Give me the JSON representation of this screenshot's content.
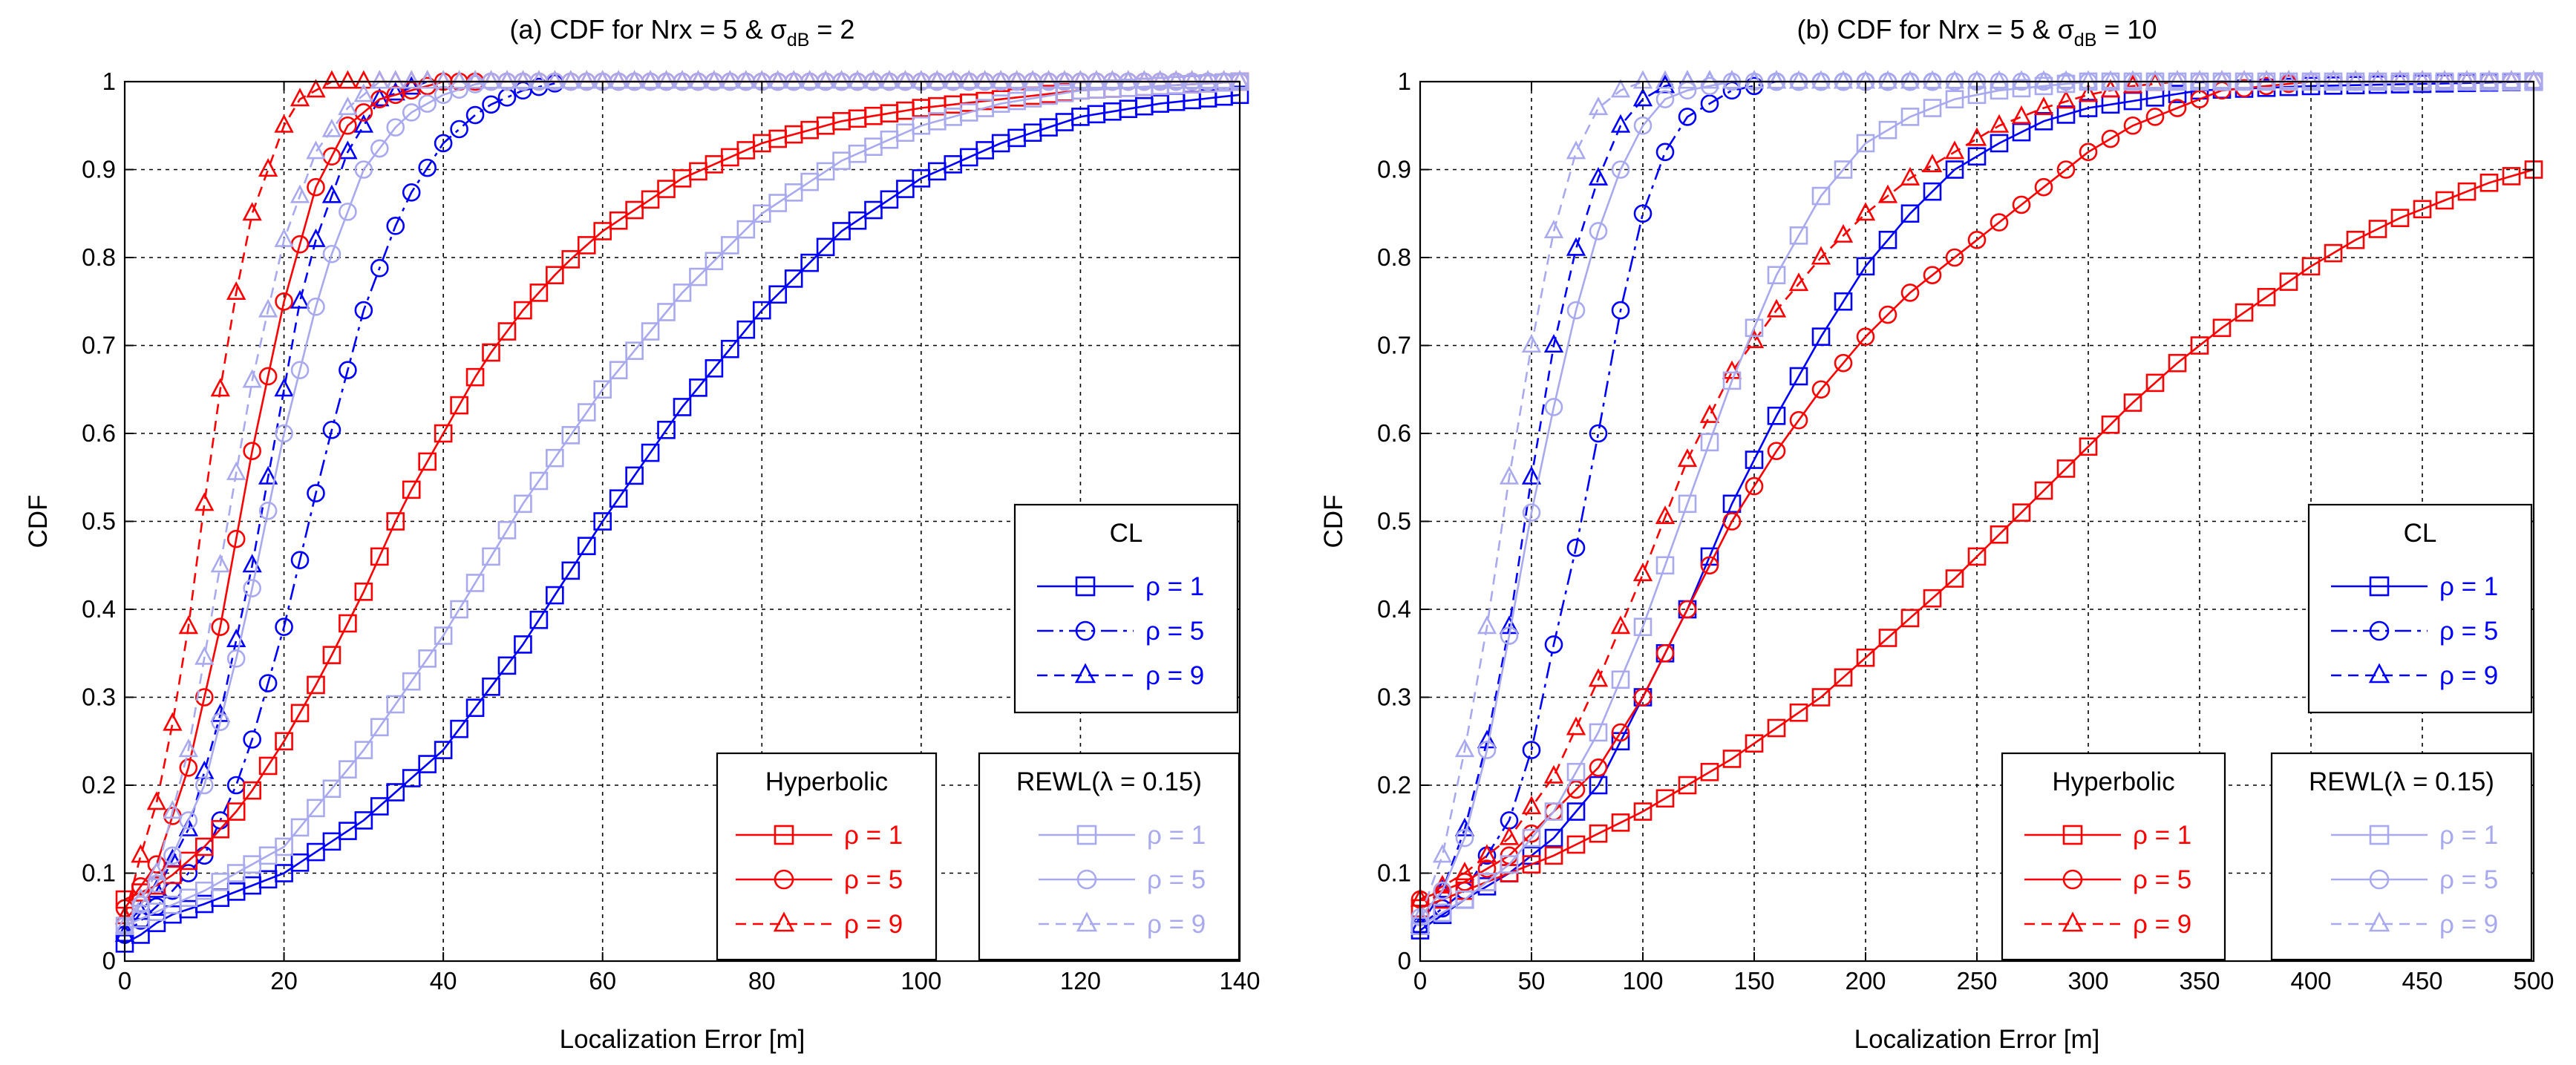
{
  "colors": {
    "cl": "#0000ff",
    "hyp": "#ff0000",
    "rewl": "#a9a9ee",
    "grid": "#000000"
  },
  "chart_data": [
    {
      "type": "line",
      "title_main": "(a) CDF for Nrx = 5 & σ",
      "title_sub": "dB",
      "title_tail": " = 2",
      "xlabel": "Localization Error [m]",
      "ylabel": "CDF",
      "xlim": [
        0,
        140
      ],
      "ylim": [
        0,
        1
      ],
      "xticks": [
        0,
        20,
        40,
        60,
        80,
        100,
        120,
        140
      ],
      "yticks": [
        0,
        0.1,
        0.2,
        0.3,
        0.4,
        0.5,
        0.6,
        0.7,
        0.8,
        0.9,
        1
      ],
      "grid": true,
      "legends": [
        {
          "title": "CL",
          "entries": [
            "CL ρ=1",
            "CL ρ=5",
            "CL ρ=9"
          ],
          "labels": [
            "ρ = 1",
            "ρ = 5",
            "ρ = 9"
          ]
        },
        {
          "title": "Hyperbolic",
          "entries": [
            "Hyperbolic ρ=1",
            "Hyperbolic ρ=5",
            "Hyperbolic ρ=9"
          ],
          "labels": [
            "ρ = 1",
            "ρ = 5",
            "ρ = 9"
          ]
        },
        {
          "title": "REWL(λ = 0.15)",
          "entries": [
            "REWL ρ=1",
            "REWL ρ=5",
            "REWL ρ=9"
          ],
          "labels": [
            "ρ = 1",
            "ρ = 5",
            "ρ = 9"
          ]
        }
      ],
      "series": [
        {
          "name": "CL ρ=1",
          "color": "cl",
          "marker": "square",
          "dash": "solid",
          "x0": 0,
          "step": 2,
          "count": 71,
          "x": [
            0,
            2,
            5,
            10,
            20,
            30,
            40,
            50,
            60,
            70,
            80,
            90,
            100,
            110,
            120,
            130,
            140
          ],
          "y": [
            0.02,
            0.03,
            0.05,
            0.065,
            0.1,
            0.16,
            0.24,
            0.36,
            0.5,
            0.63,
            0.74,
            0.83,
            0.89,
            0.93,
            0.96,
            0.975,
            0.985
          ]
        },
        {
          "name": "CL ρ=5",
          "color": "cl",
          "marker": "circle",
          "dash": "dashdot",
          "x0": 0,
          "step": 2,
          "count": 28,
          "x": [
            0,
            5,
            10,
            15,
            20,
            25,
            30,
            35,
            40,
            45,
            50,
            55
          ],
          "y": [
            0.03,
            0.07,
            0.12,
            0.22,
            0.38,
            0.57,
            0.74,
            0.86,
            0.93,
            0.97,
            0.99,
            1
          ]
        },
        {
          "name": "CL ρ=9",
          "color": "cl",
          "marker": "triangle",
          "dash": "dashed",
          "x0": 0,
          "step": 2,
          "count": 20,
          "x": [
            0,
            4,
            8,
            12,
            16,
            18,
            20,
            22,
            24,
            28,
            32,
            38
          ],
          "y": [
            0.03,
            0.08,
            0.15,
            0.28,
            0.45,
            0.55,
            0.65,
            0.75,
            0.82,
            0.92,
            0.98,
            1
          ]
        },
        {
          "name": "Hyperbolic ρ=1",
          "color": "hyp",
          "marker": "square",
          "dash": "solid",
          "x0": 0,
          "step": 2,
          "count": 71,
          "x": [
            0,
            5,
            10,
            15,
            20,
            25,
            30,
            35,
            40,
            45,
            50,
            55,
            60,
            70,
            80,
            90,
            100,
            110,
            120,
            130,
            140
          ],
          "y": [
            0.07,
            0.09,
            0.13,
            0.18,
            0.25,
            0.33,
            0.42,
            0.52,
            0.6,
            0.68,
            0.74,
            0.79,
            0.83,
            0.89,
            0.93,
            0.955,
            0.97,
            0.98,
            0.99,
            0.995,
            1
          ]
        },
        {
          "name": "Hyperbolic ρ=5",
          "color": "hyp",
          "marker": "circle",
          "dash": "solid",
          "x0": 0,
          "step": 2,
          "count": 71,
          "x": [
            0,
            4,
            8,
            12,
            16,
            20,
            24,
            28,
            32,
            40,
            50,
            60,
            140
          ],
          "y": [
            0.06,
            0.11,
            0.22,
            0.38,
            0.58,
            0.75,
            0.88,
            0.95,
            0.98,
            1,
            1,
            1,
            1
          ]
        },
        {
          "name": "Hyperbolic ρ=9",
          "color": "hyp",
          "marker": "triangle",
          "dash": "dashed",
          "x0": 0,
          "step": 2,
          "count": 71,
          "x": [
            0,
            2,
            4,
            6,
            8,
            10,
            12,
            14,
            16,
            18,
            20,
            22,
            26,
            140
          ],
          "y": [
            0.05,
            0.12,
            0.18,
            0.27,
            0.38,
            0.52,
            0.65,
            0.76,
            0.85,
            0.9,
            0.95,
            0.98,
            1,
            1
          ]
        },
        {
          "name": "REWL ρ=1",
          "color": "rewl",
          "marker": "square",
          "dash": "solid",
          "x0": 0,
          "step": 2,
          "count": 71,
          "x": [
            0,
            5,
            10,
            20,
            30,
            40,
            50,
            60,
            70,
            80,
            90,
            100,
            110,
            120,
            130,
            140
          ],
          "y": [
            0.04,
            0.06,
            0.08,
            0.13,
            0.24,
            0.37,
            0.52,
            0.65,
            0.76,
            0.85,
            0.91,
            0.95,
            0.975,
            0.99,
            0.995,
            1
          ]
        },
        {
          "name": "REWL ρ=5",
          "color": "rewl",
          "marker": "circle",
          "dash": "solid",
          "x0": 0,
          "step": 2,
          "count": 71,
          "x": [
            0,
            5,
            10,
            15,
            20,
            25,
            30,
            35,
            40,
            45,
            140
          ],
          "y": [
            0.04,
            0.1,
            0.2,
            0.38,
            0.6,
            0.78,
            0.9,
            0.96,
            0.985,
            1,
            1
          ]
        },
        {
          "name": "REWL ρ=9",
          "color": "rewl",
          "marker": "triangle",
          "dash": "dashed",
          "x0": 0,
          "step": 2,
          "count": 71,
          "x": [
            0,
            4,
            8,
            12,
            16,
            20,
            24,
            28,
            32,
            140
          ],
          "y": [
            0.04,
            0.1,
            0.24,
            0.45,
            0.66,
            0.82,
            0.92,
            0.97,
            1,
            1
          ]
        }
      ]
    },
    {
      "type": "line",
      "title_main": "(b) CDF for Nrx = 5 & σ",
      "title_sub": "dB",
      "title_tail": " = 10",
      "xlabel": "Localization Error [m]",
      "ylabel": "CDF",
      "xlim": [
        0,
        500
      ],
      "ylim": [
        0,
        1
      ],
      "xticks": [
        0,
        50,
        100,
        150,
        200,
        250,
        300,
        350,
        400,
        450,
        500
      ],
      "yticks": [
        0,
        0.1,
        0.2,
        0.3,
        0.4,
        0.5,
        0.6,
        0.7,
        0.8,
        0.9,
        1
      ],
      "grid": true,
      "legends": [
        {
          "title": "CL",
          "entries": [
            "CL ρ=1",
            "CL ρ=5",
            "CL ρ=9"
          ],
          "labels": [
            "ρ = 1",
            "ρ = 5",
            "ρ = 9"
          ]
        },
        {
          "title": "Hyperbolic",
          "entries": [
            "Hyperbolic ρ=1",
            "Hyperbolic ρ=5",
            "Hyperbolic ρ=9"
          ],
          "labels": [
            "ρ = 1",
            "ρ = 5",
            "ρ = 9"
          ]
        },
        {
          "title": "REWL(λ = 0.15)",
          "entries": [
            "REWL ρ=1",
            "REWL ρ=5",
            "REWL ρ=9"
          ],
          "labels": [
            "ρ = 1",
            "ρ = 5",
            "ρ = 9"
          ]
        }
      ],
      "series": [
        {
          "name": "CL ρ=1",
          "color": "cl",
          "marker": "square",
          "dash": "solid",
          "x0": 0,
          "step": 10,
          "count": 51,
          "x": [
            0,
            20,
            40,
            60,
            80,
            100,
            120,
            140,
            160,
            180,
            200,
            220,
            240,
            260,
            280,
            300,
            350,
            400,
            500
          ],
          "y": [
            0.035,
            0.07,
            0.1,
            0.14,
            0.2,
            0.3,
            0.4,
            0.52,
            0.62,
            0.71,
            0.79,
            0.85,
            0.9,
            0.93,
            0.955,
            0.97,
            0.99,
            0.995,
            1
          ]
        },
        {
          "name": "CL ρ=5",
          "color": "cl",
          "marker": "circle",
          "dash": "dashdot",
          "x0": 0,
          "step": 10,
          "count": 24,
          "x": [
            0,
            20,
            40,
            50,
            60,
            70,
            80,
            90,
            100,
            110,
            120,
            140,
            160,
            230
          ],
          "y": [
            0.04,
            0.08,
            0.16,
            0.24,
            0.36,
            0.47,
            0.6,
            0.74,
            0.85,
            0.92,
            0.96,
            0.99,
            1,
            1
          ]
        },
        {
          "name": "CL ρ=9",
          "color": "cl",
          "marker": "triangle",
          "dash": "dashed",
          "x0": 0,
          "step": 10,
          "count": 17,
          "x": [
            0,
            10,
            20,
            30,
            40,
            50,
            60,
            70,
            80,
            90,
            100,
            110,
            120,
            160
          ],
          "y": [
            0.04,
            0.08,
            0.15,
            0.25,
            0.38,
            0.55,
            0.7,
            0.81,
            0.89,
            0.95,
            0.98,
            0.995,
            1,
            1
          ]
        },
        {
          "name": "Hyperbolic ρ=1",
          "color": "hyp",
          "marker": "square",
          "dash": "solid",
          "x0": 0,
          "step": 10,
          "count": 51,
          "x": [
            0,
            20,
            40,
            60,
            80,
            100,
            120,
            140,
            160,
            180,
            200,
            220,
            240,
            260,
            280,
            300,
            320,
            340,
            360,
            380,
            400,
            420,
            440,
            460,
            480,
            500
          ],
          "y": [
            0.06,
            0.08,
            0.1,
            0.12,
            0.145,
            0.17,
            0.2,
            0.23,
            0.265,
            0.3,
            0.345,
            0.39,
            0.435,
            0.485,
            0.535,
            0.585,
            0.635,
            0.68,
            0.72,
            0.755,
            0.79,
            0.82,
            0.845,
            0.865,
            0.885,
            0.9
          ]
        },
        {
          "name": "Hyperbolic ρ=5",
          "color": "hyp",
          "marker": "circle",
          "dash": "solid",
          "x0": 0,
          "step": 10,
          "count": 51,
          "x": [
            0,
            20,
            40,
            60,
            80,
            100,
            120,
            140,
            160,
            180,
            200,
            220,
            240,
            260,
            280,
            300,
            320,
            340,
            360,
            400,
            450,
            500
          ],
          "y": [
            0.07,
            0.09,
            0.12,
            0.17,
            0.22,
            0.3,
            0.4,
            0.5,
            0.58,
            0.65,
            0.71,
            0.76,
            0.8,
            0.84,
            0.88,
            0.92,
            0.95,
            0.97,
            0.99,
            1,
            1,
            1
          ]
        },
        {
          "name": "Hyperbolic ρ=9",
          "color": "hyp",
          "marker": "triangle",
          "dash": "dashed",
          "x0": 0,
          "step": 10,
          "count": 51,
          "x": [
            0,
            20,
            40,
            60,
            80,
            100,
            120,
            140,
            160,
            180,
            200,
            220,
            240,
            260,
            280,
            300,
            320,
            340,
            360,
            500
          ],
          "y": [
            0.07,
            0.1,
            0.14,
            0.21,
            0.32,
            0.44,
            0.57,
            0.67,
            0.74,
            0.8,
            0.85,
            0.89,
            0.92,
            0.95,
            0.97,
            0.985,
            0.995,
            1,
            1,
            1
          ]
        },
        {
          "name": "REWL ρ=1",
          "color": "rewl",
          "marker": "square",
          "dash": "solid",
          "x0": 0,
          "step": 10,
          "count": 51,
          "x": [
            0,
            20,
            40,
            60,
            80,
            100,
            120,
            140,
            160,
            180,
            200,
            220,
            240,
            260,
            280,
            300,
            500
          ],
          "y": [
            0.04,
            0.07,
            0.11,
            0.17,
            0.26,
            0.38,
            0.52,
            0.66,
            0.78,
            0.87,
            0.93,
            0.96,
            0.98,
            0.99,
            0.995,
            1,
            1
          ]
        },
        {
          "name": "REWL ρ=5",
          "color": "rewl",
          "marker": "circle",
          "dash": "solid",
          "x0": 0,
          "step": 10,
          "count": 51,
          "x": [
            0,
            10,
            20,
            30,
            40,
            50,
            60,
            70,
            80,
            90,
            100,
            110,
            120,
            140,
            500
          ],
          "y": [
            0.05,
            0.08,
            0.14,
            0.24,
            0.37,
            0.51,
            0.63,
            0.74,
            0.83,
            0.9,
            0.95,
            0.98,
            0.99,
            1,
            1
          ]
        },
        {
          "name": "REWL ρ=9",
          "color": "rewl",
          "marker": "triangle",
          "dash": "dashed",
          "x0": 0,
          "step": 10,
          "count": 51,
          "x": [
            0,
            10,
            20,
            30,
            40,
            50,
            60,
            70,
            80,
            90,
            100,
            500
          ],
          "y": [
            0.05,
            0.12,
            0.24,
            0.38,
            0.55,
            0.7,
            0.83,
            0.92,
            0.97,
            0.99,
            1,
            1
          ]
        }
      ]
    }
  ]
}
